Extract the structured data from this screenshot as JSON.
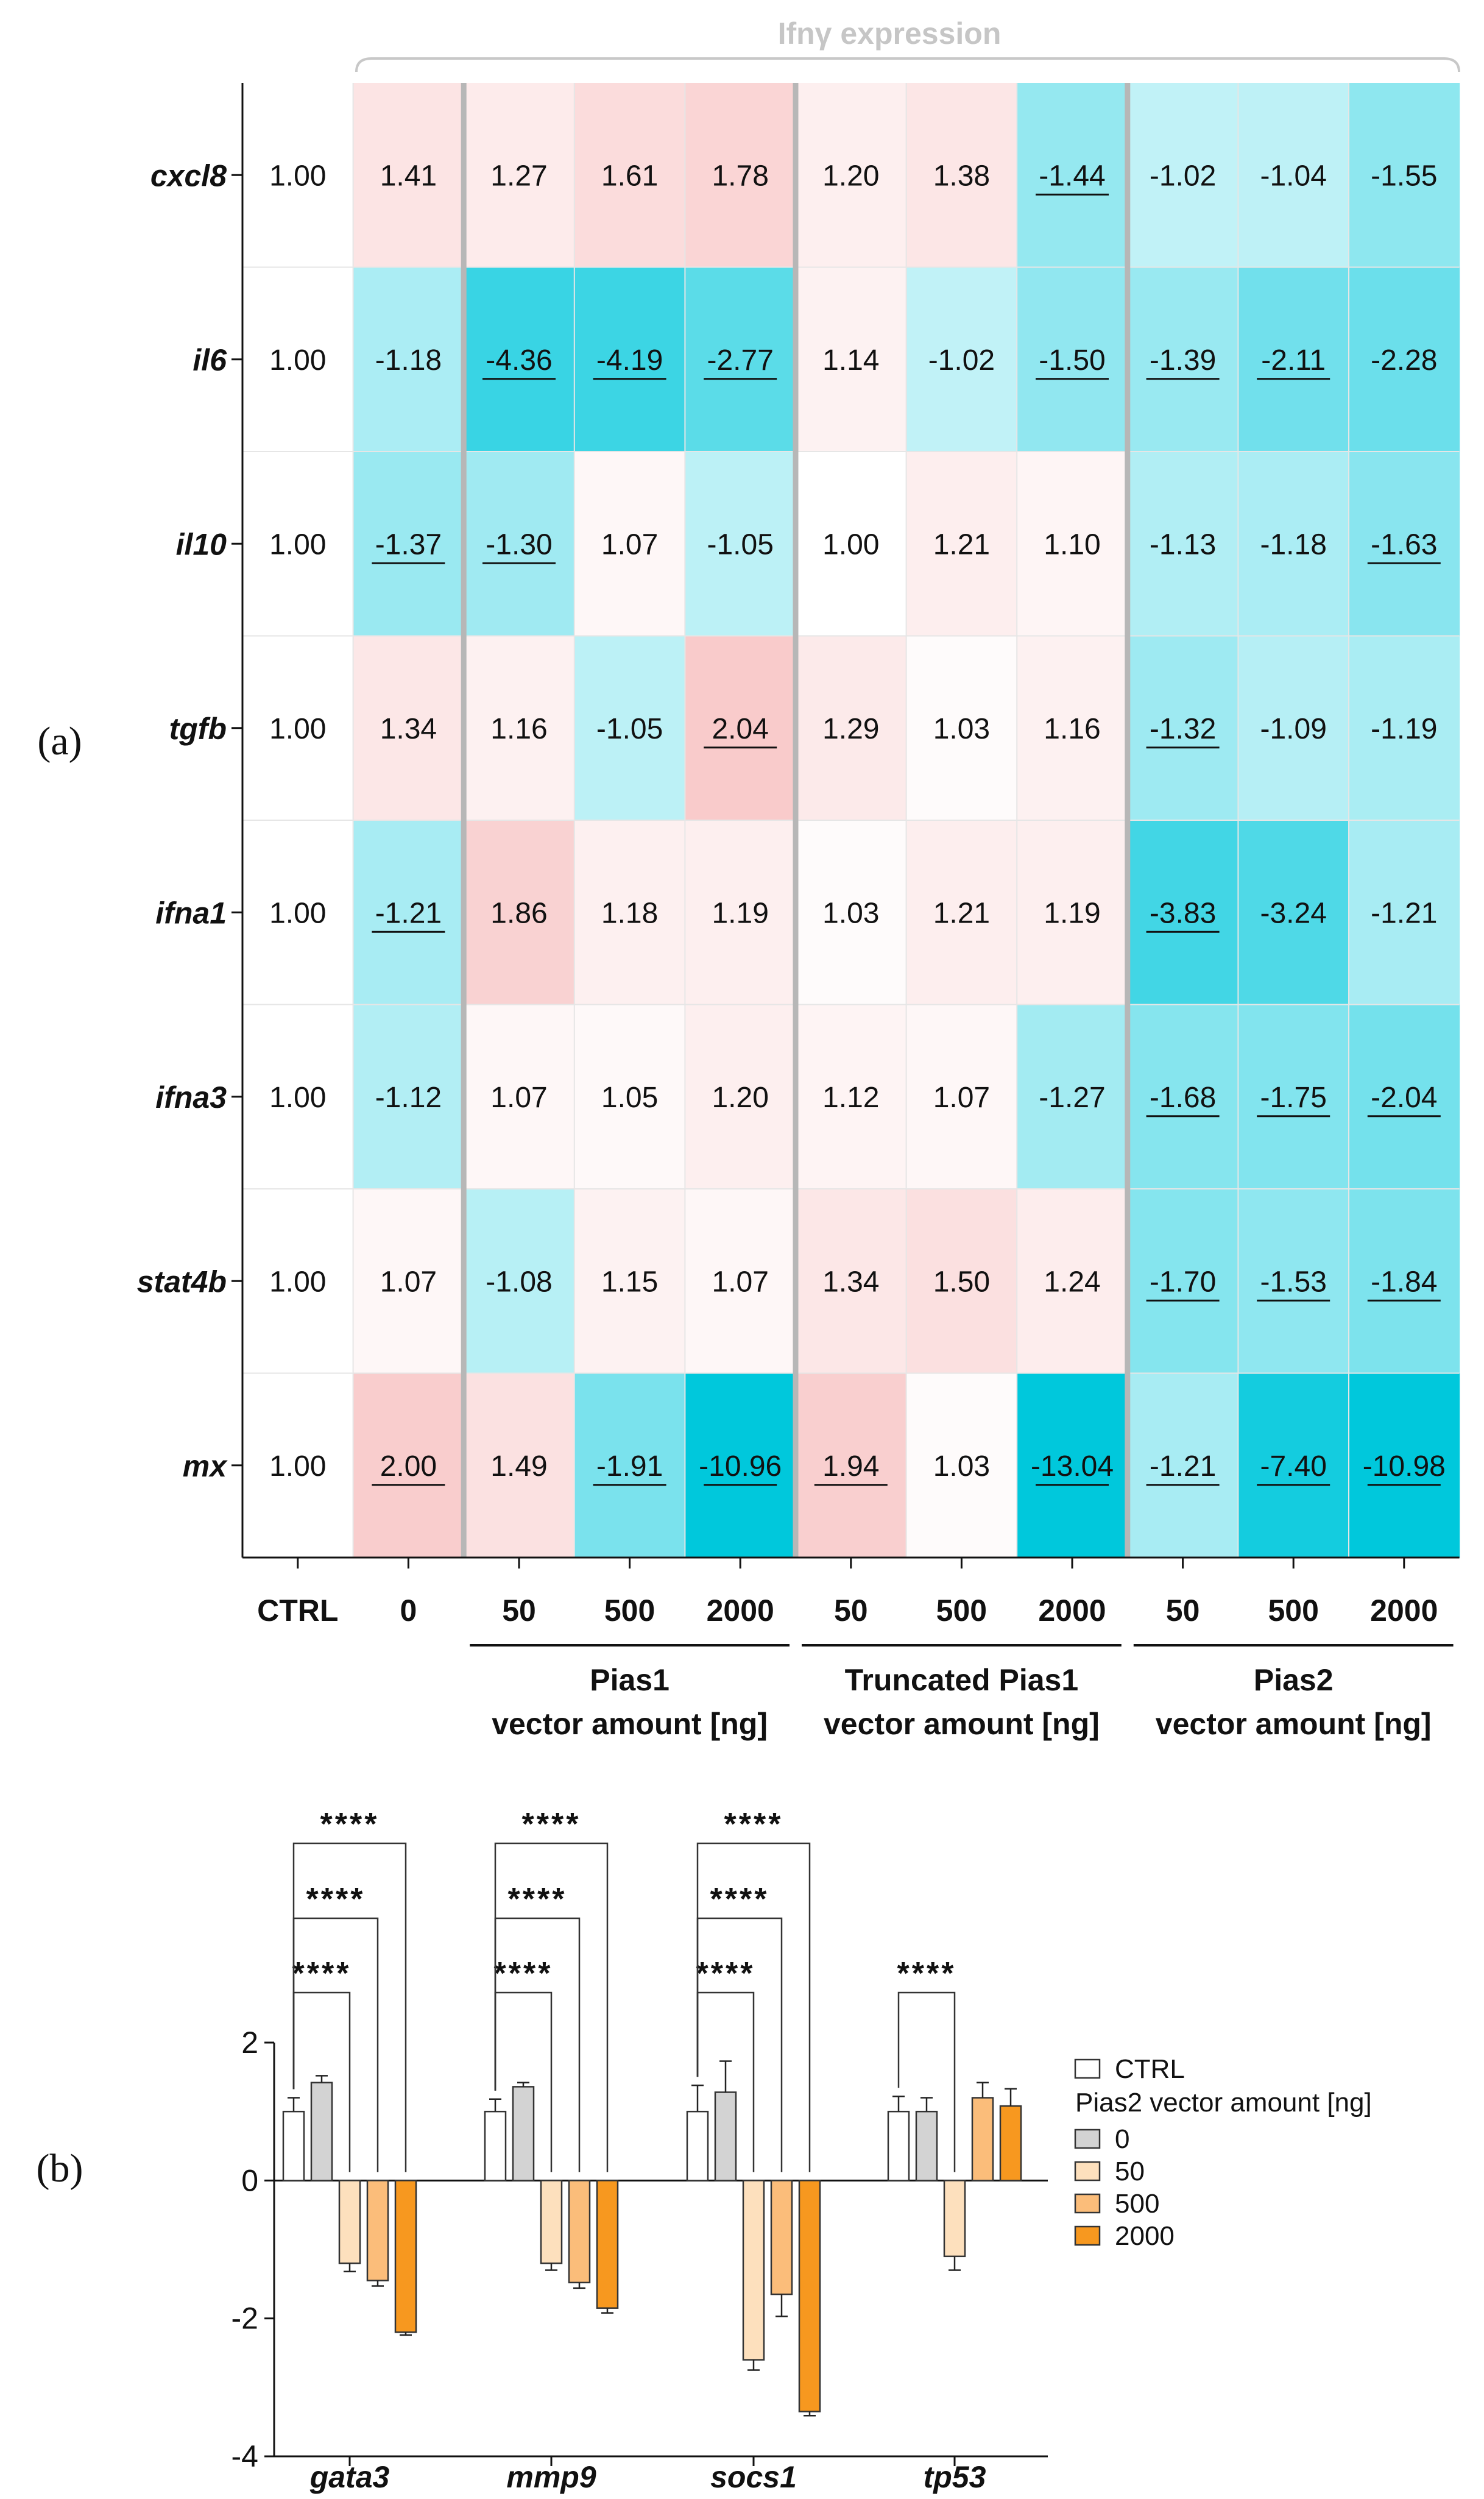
{
  "panel_labels": {
    "a": "(a)",
    "b": "(b)"
  },
  "chart_data": [
    {
      "type": "heatmap",
      "title": "Ifnγ expression",
      "genes": [
        "cxcl8",
        "il6",
        "il10",
        "tgfb",
        "ifna1",
        "ifna3",
        "stat4b",
        "mx"
      ],
      "columns": [
        "CTRL",
        "0",
        "50",
        "500",
        "2000",
        "50",
        "500",
        "2000",
        "50",
        "500",
        "2000"
      ],
      "groups": [
        {
          "name": "Pias1",
          "sub": "vector amount [ng]",
          "cols": [
            2,
            3,
            4
          ]
        },
        {
          "name": "Truncated Pias1",
          "sub": "vector amount [ng]",
          "cols": [
            5,
            6,
            7
          ]
        },
        {
          "name": "Pias2",
          "sub": "vector amount [ng]",
          "cols": [
            8,
            9,
            10
          ]
        }
      ],
      "values": [
        [
          "1.00",
          "1.41",
          "1.27",
          "1.61",
          "1.78",
          "1.20",
          "1.38",
          "-1.44",
          "-1.02",
          "-1.04",
          "-1.55"
        ],
        [
          "1.00",
          "-1.18",
          "-4.36",
          "-4.19",
          "-2.77",
          "1.14",
          "-1.02",
          "-1.50",
          "-1.39",
          "-2.11",
          "-2.28"
        ],
        [
          "1.00",
          "-1.37",
          "-1.30",
          "1.07",
          "-1.05",
          "1.00",
          "1.21",
          "1.10",
          "-1.13",
          "-1.18",
          "-1.63"
        ],
        [
          "1.00",
          "1.34",
          "1.16",
          "-1.05",
          "2.04",
          "1.29",
          "1.03",
          "1.16",
          "-1.32",
          "-1.09",
          "-1.19"
        ],
        [
          "1.00",
          "-1.21",
          "1.86",
          "1.18",
          "1.19",
          "1.03",
          "1.21",
          "1.19",
          "-3.83",
          "-3.24",
          "-1.21"
        ],
        [
          "1.00",
          "-1.12",
          "1.07",
          "1.05",
          "1.20",
          "1.12",
          "1.07",
          "-1.27",
          "-1.68",
          "-1.75",
          "-2.04"
        ],
        [
          "1.00",
          "1.07",
          "-1.08",
          "1.15",
          "1.07",
          "1.34",
          "1.50",
          "1.24",
          "-1.70",
          "-1.53",
          "-1.84"
        ],
        [
          "1.00",
          "2.00",
          "1.49",
          "-1.91",
          "-10.96",
          "1.94",
          "1.03",
          "-13.04",
          "-1.21",
          "-7.40",
          "-10.98"
        ]
      ],
      "significant": [
        [
          0,
          0,
          0,
          0,
          0,
          0,
          0,
          1,
          0,
          0,
          0
        ],
        [
          0,
          0,
          1,
          1,
          1,
          0,
          0,
          1,
          1,
          1,
          0
        ],
        [
          0,
          1,
          1,
          0,
          0,
          0,
          0,
          0,
          0,
          0,
          1
        ],
        [
          0,
          0,
          0,
          0,
          1,
          0,
          0,
          0,
          1,
          0,
          0
        ],
        [
          0,
          1,
          0,
          0,
          0,
          0,
          0,
          0,
          1,
          0,
          0
        ],
        [
          0,
          0,
          0,
          0,
          0,
          0,
          0,
          0,
          1,
          1,
          1
        ],
        [
          0,
          0,
          0,
          0,
          0,
          0,
          0,
          0,
          1,
          1,
          1
        ],
        [
          0,
          1,
          0,
          1,
          1,
          1,
          0,
          1,
          1,
          1,
          1
        ]
      ],
      "colors": {
        "up": "#f8c6c6",
        "down": "#00c8dc",
        "neutral": "#ffffff"
      }
    },
    {
      "type": "bar",
      "categories": [
        "gata3",
        "mmp9",
        "socs1",
        "tp53"
      ],
      "ylim": [
        -4,
        2
      ],
      "yticks": [
        2,
        0,
        -2,
        -4
      ],
      "series": [
        {
          "name": "CTRL",
          "color": "#ffffff",
          "values": [
            1.0,
            1.0,
            1.0,
            1.0
          ],
          "errors": [
            0.2,
            0.18,
            0.38,
            0.22
          ]
        },
        {
          "name": "0",
          "color": "#d3d3d3",
          "values": [
            1.42,
            1.36,
            1.28,
            1.0
          ],
          "errors": [
            0.1,
            0.06,
            0.45,
            0.2
          ]
        },
        {
          "name": "50",
          "color": "#fde0bd",
          "values": [
            -1.2,
            -1.2,
            -2.6,
            -1.1
          ],
          "errors": [
            0.12,
            0.1,
            0.15,
            0.2
          ]
        },
        {
          "name": "500",
          "color": "#fbbd7a",
          "values": [
            -1.45,
            -1.48,
            -1.65,
            1.2
          ],
          "errors": [
            0.08,
            0.08,
            0.32,
            0.22
          ]
        },
        {
          "name": "2000",
          "color": "#f7981f",
          "values": [
            -2.2,
            -1.85,
            -3.35,
            1.08
          ],
          "errors": [
            0.04,
            0.07,
            0.06,
            0.25
          ]
        }
      ],
      "legend": {
        "ctrl": "CTRL",
        "title": "Pias2 vector amount [ng]",
        "items": [
          "0",
          "50",
          "500",
          "2000"
        ]
      },
      "significance_label": "****",
      "comparisons": [
        {
          "category": "gata3",
          "to": [
            "50",
            "500",
            "2000"
          ]
        },
        {
          "category": "mmp9",
          "to": [
            "50",
            "500",
            "2000"
          ]
        },
        {
          "category": "socs1",
          "to": [
            "50",
            "500",
            "2000"
          ]
        },
        {
          "category": "tp53",
          "to": [
            "50"
          ]
        }
      ]
    }
  ]
}
